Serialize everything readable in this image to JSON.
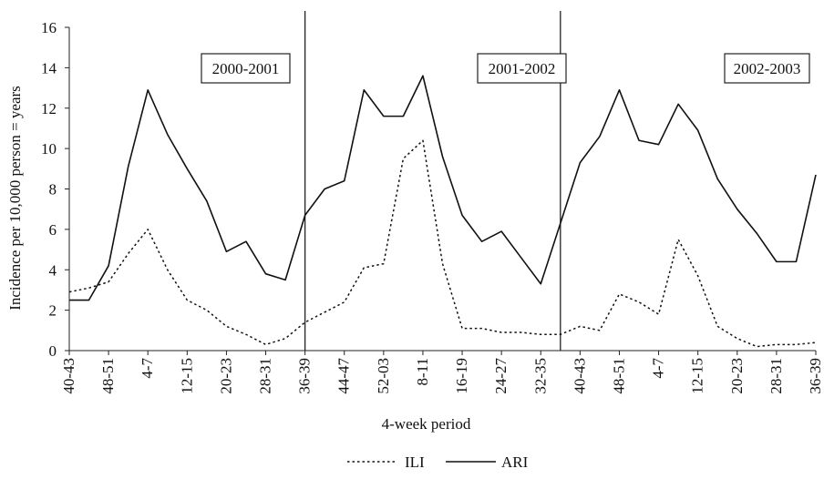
{
  "chart_data": {
    "type": "line",
    "title": "",
    "xlabel": "4-week period",
    "ylabel": "Incidence per 10,000 person = years",
    "ylim": [
      0,
      16
    ],
    "yticks": [
      0,
      2,
      4,
      6,
      8,
      10,
      12,
      14,
      16
    ],
    "grid": false,
    "legend_position": "bottom",
    "categories": [
      "40-43",
      "44-47",
      "48-51",
      "52-03",
      "4-7",
      "8-11",
      "12-15",
      "16-19",
      "20-23",
      "24-27",
      "28-31",
      "32-35",
      "36-39",
      "40-43",
      "44-47",
      "48-51",
      "52-03",
      "4-7",
      "8-11",
      "12-15",
      "16-19",
      "20-23",
      "24-27",
      "28-31",
      "32-35",
      "36-39",
      "40-43",
      "44-47",
      "48-51",
      "52-03",
      "4-7",
      "8-11",
      "12-15",
      "16-19",
      "20-23",
      "24-27",
      "28-31",
      "32-35",
      "36-39"
    ],
    "x_tick_labels": [
      "40-43",
      "48-51",
      "4-7",
      "12-15",
      "20-23",
      "28-31",
      "36-39",
      "44-47",
      "52-03",
      "8-11",
      "16-19",
      "24-27",
      "32-35",
      "40-43",
      "48-51",
      "4-7",
      "12-15",
      "20-23",
      "28-31",
      "36-39"
    ],
    "series": [
      {
        "name": "ILI",
        "style": "dotted",
        "color": "#111111",
        "values": [
          2.9,
          3.1,
          3.4,
          4.8,
          6.0,
          4.0,
          2.5,
          2.0,
          1.2,
          0.8,
          0.3,
          0.6,
          1.4,
          1.9,
          2.4,
          4.1,
          4.3,
          9.5,
          10.4,
          4.3,
          1.1,
          1.1,
          0.9,
          0.9,
          0.8,
          0.8,
          1.2,
          1.0,
          2.8,
          2.4,
          1.8,
          5.5,
          3.7,
          1.2,
          0.6,
          0.2,
          0.3,
          0.3,
          0.4
        ]
      },
      {
        "name": "ARI",
        "style": "solid",
        "color": "#111111",
        "values": [
          2.5,
          2.5,
          4.2,
          9.1,
          12.9,
          10.7,
          9.0,
          7.4,
          4.9,
          5.4,
          3.8,
          3.5,
          6.7,
          8.0,
          8.4,
          12.9,
          11.6,
          11.6,
          13.6,
          9.6,
          6.7,
          5.4,
          5.9,
          4.6,
          3.3,
          6.3,
          9.3,
          10.6,
          12.9,
          10.4,
          10.2,
          12.2,
          10.9,
          8.5,
          7.0,
          5.8,
          4.4,
          4.4,
          8.7
        ]
      }
    ],
    "season_dividers_after_index": [
      12,
      25
    ],
    "annotations": [
      "2000-2001",
      "2001-2002",
      "2002-2003"
    ]
  },
  "legend": {
    "ili": "ILI",
    "ari": "ARI"
  }
}
